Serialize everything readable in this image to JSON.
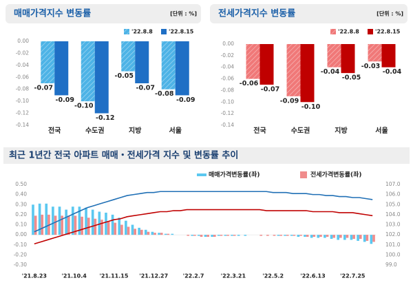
{
  "chart_data": [
    {
      "type": "bar",
      "title": "매매가격지수 변동률",
      "unit": "[단위 : %]",
      "categories": [
        "전국",
        "수도권",
        "지방",
        "서울"
      ],
      "series": [
        {
          "name": "'22.8.8",
          "color": "#4db3e6",
          "hatch": true,
          "values": [
            -0.07,
            -0.1,
            -0.05,
            -0.08
          ],
          "value_labels": [
            "-0.07",
            "-0.10",
            "-0.05",
            "-0.08"
          ]
        },
        {
          "name": "'22.8.15",
          "color": "#1f6fc5",
          "hatch": false,
          "values": [
            -0.09,
            -0.12,
            -0.07,
            -0.09
          ],
          "value_labels": [
            "-0.09",
            "-0.12",
            "-0.07",
            "-0.09"
          ]
        }
      ],
      "ylim": [
        -0.14,
        0
      ],
      "yticks": [
        {
          "value": 0,
          "label": "0.00"
        },
        {
          "value": -0.02,
          "label": "-0.02"
        },
        {
          "value": -0.04,
          "label": "-0.04"
        },
        {
          "value": -0.06,
          "label": "-0.06"
        },
        {
          "value": -0.08,
          "label": "-0.08"
        },
        {
          "value": -0.1,
          "label": "-0.10"
        },
        {
          "value": -0.12,
          "label": "-0.12"
        },
        {
          "value": -0.14,
          "label": "-0.14"
        }
      ]
    },
    {
      "type": "bar",
      "title": "전세가격지수 변동률",
      "unit": "[단위 : %]",
      "categories": [
        "전국",
        "수도권",
        "지방",
        "서울"
      ],
      "series": [
        {
          "name": "'22.8.8",
          "color": "#f07878",
          "hatch": true,
          "values": [
            -0.06,
            -0.09,
            -0.04,
            -0.03
          ],
          "value_labels": [
            "-0.06",
            "-0.09",
            "-0.04",
            "-0.03"
          ]
        },
        {
          "name": "'22.8.15",
          "color": "#c00000",
          "hatch": false,
          "values": [
            -0.07,
            -0.1,
            -0.05,
            -0.04
          ],
          "value_labels": [
            "-0.07",
            "-0.10",
            "-0.05",
            "-0.04"
          ]
        }
      ],
      "ylim": [
        -0.14,
        0
      ],
      "yticks": [
        {
          "value": 0,
          "label": "0.00"
        },
        {
          "value": -0.02,
          "label": "-0.02"
        },
        {
          "value": -0.04,
          "label": "-0.04"
        },
        {
          "value": -0.06,
          "label": "-0.06"
        },
        {
          "value": -0.08,
          "label": "-0.08"
        },
        {
          "value": -0.1,
          "label": "-0.10"
        },
        {
          "value": -0.12,
          "label": "-0.12"
        },
        {
          "value": -0.14,
          "label": "-0.14"
        }
      ]
    },
    {
      "type": "combo",
      "title": "최근 1년간 전국 아파트 매매・전세가격 지수 및 변동률 추이",
      "categories": [
        "'21.8.23",
        null,
        null,
        null,
        null,
        null,
        "'21.10.4",
        null,
        null,
        null,
        null,
        null,
        "'21.11.15",
        null,
        null,
        null,
        null,
        null,
        "'21.12.27",
        null,
        null,
        null,
        null,
        null,
        "'22.2.7",
        null,
        null,
        null,
        null,
        null,
        "'22.3.21",
        null,
        null,
        null,
        null,
        null,
        "'22.5.2",
        null,
        null,
        null,
        null,
        null,
        "'22.6.13",
        null,
        null,
        null,
        null,
        null,
        "'22.7.25",
        null,
        null,
        null
      ],
      "series": [
        {
          "name": "매매가격변동률(좌)",
          "color": "#5bc8f0",
          "values": [
            0.3,
            0.31,
            0.31,
            0.28,
            0.28,
            0.25,
            0.28,
            0.28,
            0.27,
            0.25,
            0.23,
            0.22,
            0.2,
            0.17,
            0.14,
            0.1,
            0.07,
            0.05,
            0.03,
            0.02,
            0.01,
            0.01,
            0.0,
            0.0,
            -0.01,
            -0.01,
            -0.02,
            -0.02,
            -0.01,
            -0.01,
            -0.01,
            -0.01,
            -0.01,
            0.0,
            0.0,
            0.0,
            0.0,
            -0.01,
            -0.01,
            -0.01,
            -0.02,
            -0.02,
            -0.03,
            -0.03,
            -0.03,
            -0.04,
            -0.05,
            -0.05,
            -0.05,
            -0.06,
            -0.07,
            -0.09
          ]
        },
        {
          "name": "전세가격변동률(좌)",
          "color": "#f08c8c",
          "values": [
            0.19,
            0.2,
            0.2,
            0.19,
            0.19,
            0.19,
            0.19,
            0.18,
            0.17,
            0.16,
            0.15,
            0.13,
            0.12,
            0.1,
            0.08,
            0.06,
            0.05,
            0.03,
            0.02,
            0.02,
            0.01,
            0.0,
            0.0,
            -0.01,
            -0.01,
            -0.02,
            -0.02,
            -0.02,
            -0.01,
            -0.01,
            -0.01,
            0.0,
            0.0,
            0.0,
            -0.01,
            -0.01,
            -0.01,
            -0.01,
            -0.01,
            -0.01,
            -0.01,
            -0.02,
            -0.02,
            -0.02,
            -0.02,
            -0.03,
            -0.03,
            -0.03,
            -0.04,
            -0.04,
            -0.06,
            -0.07
          ]
        }
      ],
      "lines": [
        {
          "color": "#1f6fb5",
          "axis": "y2",
          "values": [
            102.3,
            102.6,
            102.9,
            103.2,
            103.5,
            103.8,
            104.1,
            104.4,
            104.7,
            104.9,
            105.1,
            105.3,
            105.5,
            105.7,
            105.9,
            106.0,
            106.1,
            106.2,
            106.2,
            106.3,
            106.3,
            106.3,
            106.3,
            106.3,
            106.3,
            106.3,
            106.3,
            106.3,
            106.3,
            106.3,
            106.3,
            106.3,
            106.3,
            106.3,
            106.3,
            106.3,
            106.2,
            106.2,
            106.2,
            106.1,
            106.1,
            106.1,
            106.0,
            106.0,
            105.9,
            105.9,
            105.8,
            105.8,
            105.7,
            105.7,
            105.6,
            105.5
          ]
        },
        {
          "color": "#c00000",
          "axis": "y2",
          "values": [
            101.1,
            101.3,
            101.5,
            101.7,
            101.9,
            102.1,
            102.3,
            102.5,
            102.7,
            102.9,
            103.1,
            103.3,
            103.5,
            103.6,
            103.8,
            103.9,
            104.0,
            104.1,
            104.2,
            104.3,
            104.3,
            104.4,
            104.4,
            104.5,
            104.5,
            104.5,
            104.5,
            104.5,
            104.5,
            104.5,
            104.5,
            104.5,
            104.5,
            104.5,
            104.5,
            104.4,
            104.4,
            104.4,
            104.4,
            104.4,
            104.4,
            104.4,
            104.3,
            104.3,
            104.3,
            104.3,
            104.2,
            104.2,
            104.2,
            104.1,
            104.0,
            103.9
          ]
        }
      ],
      "ylim": [
        -0.3,
        0.5
      ],
      "yticks": [
        {
          "value": 0.5,
          "label": "0.50"
        },
        {
          "value": 0.4,
          "label": "0.40"
        },
        {
          "value": 0.3,
          "label": "0.30"
        },
        {
          "value": 0.2,
          "label": "0.20"
        },
        {
          "value": 0.1,
          "label": "0.10"
        },
        {
          "value": 0,
          "label": "0.00"
        },
        {
          "value": -0.1,
          "label": "-0.10"
        },
        {
          "value": -0.2,
          "label": "-0.20"
        },
        {
          "value": -0.3,
          "label": "-0.30"
        }
      ],
      "y2lim": [
        99,
        107
      ],
      "y2ticks": [
        {
          "value": 107,
          "label": "107.0"
        },
        {
          "value": 106,
          "label": "106.0"
        },
        {
          "value": 105,
          "label": "105.0"
        },
        {
          "value": 104,
          "label": "104.0"
        },
        {
          "value": 103,
          "label": "103.0"
        },
        {
          "value": 102,
          "label": "102.0"
        },
        {
          "value": 101,
          "label": "101.0"
        },
        {
          "value": 100,
          "label": "100.0"
        },
        {
          "value": 99,
          "label": "99.0"
        }
      ]
    }
  ]
}
